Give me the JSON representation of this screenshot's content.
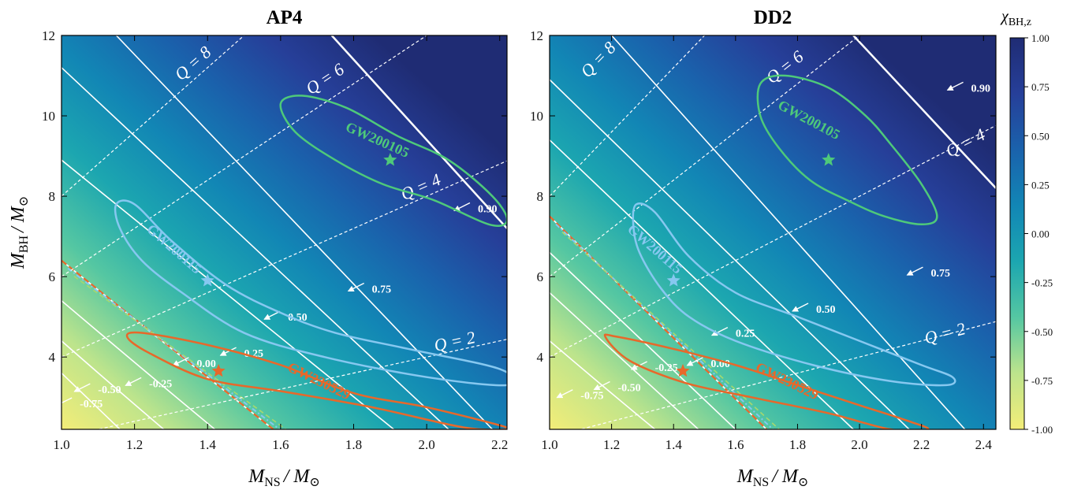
{
  "chart_data": [
    {
      "type": "heatmap",
      "title": "AP4",
      "xlabel_main": "M",
      "xlabel_sub": "NS",
      "xlabel_unit": "/ M",
      "xlabel_unit_sub": "⊙",
      "ylabel_main": "M",
      "ylabel_sub": "BH",
      "ylabel_unit": "/ M",
      "ylabel_unit_sub": "⊙",
      "xlim": [
        1.0,
        2.22
      ],
      "ylim": [
        2.2,
        12.0
      ],
      "xticks": [
        "1.0",
        "1.2",
        "1.4",
        "1.6",
        "1.8",
        "2.0",
        "2.2"
      ],
      "xtick_values": [
        1.0,
        1.2,
        1.4,
        1.6,
        1.8,
        2.0,
        2.2
      ],
      "yticks": [
        "4",
        "6",
        "8",
        "10",
        "12"
      ],
      "ytick_values": [
        4,
        6,
        8,
        10,
        12
      ],
      "spin_zero_line": [
        [
          1.0,
          6.4
        ],
        [
          1.58,
          2.2
        ]
      ],
      "spin_contours": [
        {
          "label": "-0.75",
          "line": [
            [
              1.0,
              3.6
            ],
            [
              1.16,
              2.2
            ]
          ],
          "label_at": [
            1.05,
            2.75
          ]
        },
        {
          "label": "-0.50",
          "line": [
            [
              1.0,
              4.4
            ],
            [
              1.28,
              2.2
            ]
          ],
          "label_at": [
            1.1,
            3.1
          ]
        },
        {
          "label": "-0.25",
          "line": [
            [
              1.0,
              5.4
            ],
            [
              1.42,
              2.2
            ]
          ],
          "label_at": [
            1.24,
            3.25
          ]
        },
        {
          "label": "0.00",
          "line": [
            [
              1.0,
              6.4
            ],
            [
              1.58,
              2.2
            ]
          ],
          "label_at": [
            1.37,
            3.75
          ]
        },
        {
          "label": "0.25",
          "line": [
            [
              1.0,
              8.9
            ],
            [
              1.91,
              2.2
            ]
          ],
          "label_at": [
            1.5,
            4.0
          ]
        },
        {
          "label": "0.50",
          "line": [
            [
              1.0,
              11.2
            ],
            [
              2.06,
              2.2
            ]
          ],
          "label_at": [
            1.62,
            4.9
          ]
        },
        {
          "label": "0.75",
          "line": [
            [
              1.15,
              12.0
            ],
            [
              2.18,
              2.2
            ]
          ],
          "label_at": [
            1.85,
            5.6
          ]
        },
        {
          "label": "0.90",
          "line": [
            [
              1.74,
              12.0
            ],
            [
              2.22,
              7.2
            ]
          ],
          "label_at": [
            2.14,
            7.6
          ]
        }
      ],
      "q_lines": [
        {
          "label": "Q = 2",
          "q": 2,
          "label_at": [
            2.08,
            4.25
          ]
        },
        {
          "label": "Q = 4",
          "q": 4,
          "label_at": [
            1.99,
            8.1
          ]
        },
        {
          "label": "Q = 6",
          "q": 6,
          "label_at": [
            1.73,
            10.8
          ]
        },
        {
          "label": "Q = 8",
          "q": 8,
          "label_at": [
            1.37,
            11.2
          ]
        }
      ],
      "events": [
        {
          "name": "GW200105",
          "color": "#4ec97a",
          "star": [
            1.9,
            8.9
          ],
          "label_at": [
            1.86,
            9.3
          ],
          "label_angle": 24,
          "contour": [
            [
              1.6,
              10.3
            ],
            [
              1.66,
              10.5
            ],
            [
              1.78,
              10.2
            ],
            [
              1.92,
              9.5
            ],
            [
              2.06,
              8.9
            ],
            [
              2.18,
              8.0
            ],
            [
              2.22,
              7.4
            ],
            [
              2.17,
              7.3
            ],
            [
              2.02,
              7.9
            ],
            [
              1.88,
              8.3
            ],
            [
              1.75,
              8.9
            ],
            [
              1.64,
              9.6
            ]
          ]
        },
        {
          "name": "GW200115",
          "color": "#86c8f0",
          "star": [
            1.4,
            5.9
          ],
          "label_at": [
            1.3,
            6.6
          ],
          "label_angle": 41,
          "contour": [
            [
              1.15,
              7.8
            ],
            [
              1.2,
              7.8
            ],
            [
              1.3,
              6.9
            ],
            [
              1.45,
              5.8
            ],
            [
              1.6,
              5.1
            ],
            [
              1.75,
              4.6
            ],
            [
              1.95,
              4.2
            ],
            [
              2.2,
              3.7
            ],
            [
              2.22,
              3.3
            ],
            [
              2.0,
              3.5
            ],
            [
              1.72,
              4.0
            ],
            [
              1.5,
              4.6
            ],
            [
              1.33,
              5.6
            ],
            [
              1.22,
              6.4
            ],
            [
              1.16,
              7.2
            ]
          ]
        },
        {
          "name": "GW230529",
          "color": "#e8682a",
          "star": [
            1.43,
            3.65
          ],
          "label_at": [
            1.7,
            3.3
          ],
          "label_angle": 26,
          "contour": [
            [
              1.18,
              4.5
            ],
            [
              1.22,
              4.6
            ],
            [
              1.4,
              4.3
            ],
            [
              1.6,
              3.8
            ],
            [
              1.8,
              3.1
            ],
            [
              2.0,
              2.75
            ],
            [
              2.2,
              2.3
            ],
            [
              2.22,
              2.2
            ],
            [
              2.1,
              2.25
            ],
            [
              1.85,
              2.75
            ],
            [
              1.6,
              3.15
            ],
            [
              1.4,
              3.45
            ],
            [
              1.24,
              4.1
            ]
          ]
        }
      ]
    },
    {
      "type": "heatmap",
      "title": "DD2",
      "xlabel_main": "M",
      "xlabel_sub": "NS",
      "xlabel_unit": "/ M",
      "xlabel_unit_sub": "⊙",
      "xlim": [
        1.0,
        2.44
      ],
      "ylim": [
        2.2,
        12.0
      ],
      "xticks": [
        "1.0",
        "1.2",
        "1.4",
        "1.6",
        "1.8",
        "2.0",
        "2.2",
        "2.4"
      ],
      "xtick_values": [
        1.0,
        1.2,
        1.4,
        1.6,
        1.8,
        2.0,
        2.2,
        2.4
      ],
      "yticks": [
        "4",
        "6",
        "8",
        "10",
        "12"
      ],
      "ytick_values": [
        4,
        6,
        8,
        10,
        12
      ],
      "spin_zero_line": [
        [
          1.0,
          7.5
        ],
        [
          1.7,
          2.2
        ]
      ],
      "spin_contours": [
        {
          "label": "-0.75",
          "line": [
            [
              1.0,
              4.4
            ],
            [
              1.34,
              2.2
            ]
          ],
          "label_at": [
            1.1,
            2.95
          ]
        },
        {
          "label": "-0.50",
          "line": [
            [
              1.0,
              5.6
            ],
            [
              1.48,
              2.2
            ]
          ],
          "label_at": [
            1.22,
            3.15
          ]
        },
        {
          "label": "-0.25",
          "line": [
            [
              1.0,
              6.6
            ],
            [
              1.6,
              2.2
            ]
          ],
          "label_at": [
            1.34,
            3.65
          ]
        },
        {
          "label": "0.00",
          "line": [
            [
              1.0,
              7.5
            ],
            [
              1.7,
              2.2
            ]
          ],
          "label_at": [
            1.52,
            3.75
          ]
        },
        {
          "label": "0.25",
          "line": [
            [
              1.0,
              9.4
            ],
            [
              1.98,
              2.2
            ]
          ],
          "label_at": [
            1.6,
            4.5
          ]
        },
        {
          "label": "0.50",
          "line": [
            [
              1.0,
              10.9
            ],
            [
              2.16,
              2.2
            ]
          ],
          "label_at": [
            1.86,
            5.1
          ]
        },
        {
          "label": "0.75",
          "line": [
            [
              1.2,
              12.0
            ],
            [
              2.34,
              2.2
            ]
          ],
          "label_at": [
            2.23,
            6.0
          ]
        },
        {
          "label": "0.90",
          "line": [
            [
              1.98,
              12.0
            ],
            [
              2.44,
              8.2
            ]
          ],
          "label_at": [
            2.36,
            10.6
          ]
        }
      ],
      "q_lines": [
        {
          "label": "Q = 2",
          "q": 2,
          "label_at": [
            2.28,
            4.45
          ]
        },
        {
          "label": "Q = 4",
          "q": 4,
          "label_at": [
            2.35,
            9.2
          ]
        },
        {
          "label": "Q = 6",
          "q": 6,
          "label_at": [
            1.77,
            11.1
          ]
        },
        {
          "label": "Q = 8",
          "q": 8,
          "label_at": [
            1.17,
            11.3
          ]
        }
      ],
      "events": [
        {
          "name": "GW200105",
          "color": "#4ec97a",
          "star": [
            1.9,
            8.9
          ],
          "label_at": [
            1.83,
            9.8
          ],
          "label_angle": 28,
          "contour": [
            [
              1.68,
              10.8
            ],
            [
              1.76,
              11.0
            ],
            [
              1.9,
              10.7
            ],
            [
              2.02,
              10.0
            ],
            [
              2.1,
              9.3
            ],
            [
              2.2,
              8.3
            ],
            [
              2.25,
              7.5
            ],
            [
              2.2,
              7.3
            ],
            [
              2.08,
              7.5
            ],
            [
              1.96,
              7.9
            ],
            [
              1.84,
              8.4
            ],
            [
              1.74,
              9.2
            ],
            [
              1.68,
              10.0
            ]
          ]
        },
        {
          "name": "GW200115",
          "color": "#86c8f0",
          "star": [
            1.4,
            5.9
          ],
          "label_at": [
            1.33,
            6.6
          ],
          "label_angle": 41,
          "contour": [
            [
              1.28,
              7.8
            ],
            [
              1.34,
              7.6
            ],
            [
              1.45,
              6.5
            ],
            [
              1.6,
              5.6
            ],
            [
              1.8,
              5.0
            ],
            [
              2.0,
              4.4
            ],
            [
              2.2,
              3.8
            ],
            [
              2.3,
              3.5
            ],
            [
              2.28,
              3.3
            ],
            [
              2.1,
              3.4
            ],
            [
              1.85,
              3.8
            ],
            [
              1.6,
              4.4
            ],
            [
              1.45,
              5.0
            ],
            [
              1.36,
              5.7
            ],
            [
              1.29,
              6.6
            ],
            [
              1.27,
              7.3
            ]
          ]
        },
        {
          "name": "GW230529",
          "color": "#e8682a",
          "star": [
            1.43,
            3.65
          ],
          "label_at": [
            1.76,
            3.3
          ],
          "label_angle": 26,
          "contour": [
            [
              1.18,
              4.5
            ],
            [
              1.22,
              4.5
            ],
            [
              1.4,
              4.2
            ],
            [
              1.6,
              3.8
            ],
            [
              1.8,
              3.3
            ],
            [
              2.0,
              2.8
            ],
            [
              2.16,
              2.4
            ],
            [
              2.22,
              2.2
            ],
            [
              2.1,
              2.2
            ],
            [
              1.9,
              2.6
            ],
            [
              1.65,
              3.0
            ],
            [
              1.44,
              3.35
            ],
            [
              1.26,
              3.9
            ]
          ]
        }
      ]
    }
  ],
  "colorbar": {
    "label_main": "χ",
    "label_sub": "BH,z",
    "min": -1.0,
    "max": 1.0,
    "ticks": [
      "-1.00",
      "-0.75",
      "-0.50",
      "-0.25",
      "0.00",
      "0.25",
      "0.50",
      "0.75",
      "1.00"
    ],
    "tick_values": [
      -1.0,
      -0.75,
      -0.5,
      -0.25,
      0.0,
      0.25,
      0.5,
      0.75,
      1.0
    ],
    "colors": [
      "#f3ed78",
      "#bde48c",
      "#55c7a2",
      "#1ca6b0",
      "#1286b5",
      "#1a62ac",
      "#263f99",
      "#1f2c74"
    ]
  }
}
